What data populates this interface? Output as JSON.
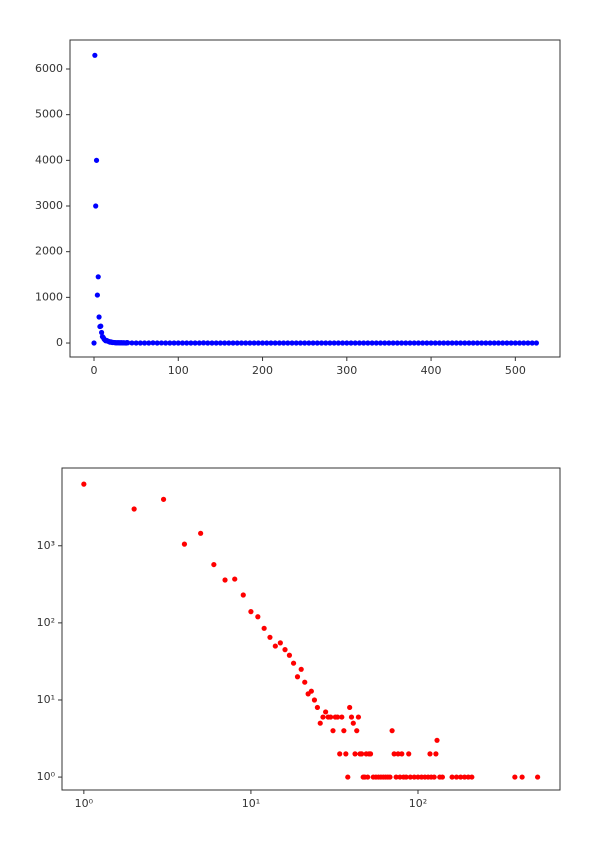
{
  "chart_data": [
    {
      "type": "scatter",
      "color": "#0000ff",
      "x": [
        0,
        1,
        2,
        3,
        4,
        5,
        6,
        7,
        8,
        9,
        10,
        11,
        12,
        13,
        14,
        15,
        16,
        17,
        18,
        19,
        20,
        21,
        22,
        23,
        24,
        25,
        26,
        27,
        28,
        29,
        30,
        31,
        32,
        33,
        34,
        35,
        36,
        37,
        38,
        39,
        40,
        45,
        50,
        55,
        60,
        65,
        70,
        75,
        80,
        85,
        90,
        95,
        100,
        105,
        110,
        115,
        120,
        125,
        130,
        135,
        140,
        145,
        150,
        155,
        160,
        165,
        170,
        175,
        180,
        185,
        190,
        195,
        200,
        205,
        210,
        215,
        220,
        225,
        230,
        235,
        240,
        245,
        250,
        255,
        260,
        265,
        270,
        275,
        280,
        285,
        290,
        295,
        300,
        305,
        310,
        315,
        320,
        325,
        330,
        335,
        340,
        345,
        350,
        355,
        360,
        365,
        370,
        375,
        380,
        385,
        390,
        395,
        400,
        405,
        410,
        415,
        420,
        425,
        430,
        435,
        440,
        445,
        450,
        455,
        460,
        465,
        470,
        475,
        480,
        485,
        490,
        495,
        500,
        505,
        510,
        515,
        520,
        525
      ],
      "values": [
        0,
        6300,
        3000,
        4000,
        1050,
        1450,
        570,
        360,
        370,
        230,
        140,
        120,
        85,
        65,
        50,
        55,
        45,
        38,
        30,
        20,
        25,
        17,
        12,
        13,
        10,
        8,
        5,
        6,
        7,
        6,
        6,
        4,
        6,
        6,
        2,
        6,
        4,
        2,
        1,
        8,
        6,
        2,
        1,
        0,
        1,
        0,
        4,
        0,
        2,
        1,
        1,
        1,
        1,
        1,
        1,
        1,
        1,
        1,
        3,
        1,
        1,
        0,
        0,
        0,
        1,
        0,
        1,
        0,
        1,
        0,
        1,
        0,
        1,
        0,
        1,
        0,
        0,
        0,
        0,
        0,
        0,
        0,
        0,
        0,
        0,
        0,
        0,
        0,
        0,
        0,
        0,
        0,
        0,
        0,
        0,
        0,
        0,
        0,
        0,
        0,
        0,
        0,
        0,
        0,
        0,
        0,
        0,
        0,
        1,
        0,
        0,
        0,
        0,
        0,
        0,
        0,
        1,
        0,
        0,
        0,
        0,
        0,
        0,
        0,
        0,
        0,
        0,
        0,
        0,
        0,
        0,
        0,
        0,
        0,
        0,
        0,
        1,
        0
      ],
      "xlim": [
        -28.5,
        553
      ],
      "ylim": [
        -306,
        6635
      ],
      "xticks": [
        0,
        100,
        200,
        300,
        400,
        500
      ],
      "yticks": [
        0,
        1000,
        2000,
        3000,
        4000,
        5000,
        6000
      ]
    },
    {
      "type": "scatter",
      "color": "#ff0000",
      "log_x": true,
      "log_y": true,
      "x": [
        1,
        2,
        3,
        4,
        5,
        6,
        7,
        8,
        9,
        10,
        11,
        12,
        13,
        14,
        15,
        16,
        17,
        18,
        19,
        20,
        21,
        22,
        23,
        24,
        25,
        26,
        27,
        28,
        29,
        30,
        31,
        32,
        33,
        34,
        35,
        36,
        37,
        38,
        39,
        40,
        41,
        42,
        43,
        44,
        45,
        46,
        47,
        48,
        49,
        50,
        51,
        52,
        54,
        56,
        58,
        60,
        62,
        64,
        66,
        68,
        70,
        72,
        74,
        76,
        78,
        80,
        82,
        85,
        88,
        90,
        95,
        100,
        105,
        110,
        115,
        118,
        120,
        125,
        128,
        130,
        135,
        140,
        160,
        170,
        180,
        190,
        200,
        210,
        380,
        420,
        520
      ],
      "values": [
        6300,
        3000,
        4000,
        1050,
        1450,
        570,
        360,
        370,
        230,
        140,
        120,
        85,
        65,
        50,
        55,
        45,
        38,
        30,
        20,
        25,
        17,
        12,
        13,
        10,
        8,
        5,
        6,
        7,
        6,
        6,
        4,
        6,
        6,
        2,
        6,
        4,
        2,
        1,
        8,
        6,
        5,
        2,
        4,
        6,
        2,
        2,
        1,
        1,
        2,
        1,
        2,
        2,
        1,
        1,
        1,
        1,
        1,
        1,
        1,
        1,
        4,
        2,
        1,
        2,
        1,
        2,
        1,
        1,
        2,
        1,
        1,
        1,
        1,
        1,
        1,
        2,
        1,
        1,
        2,
        3,
        1,
        1,
        1,
        1,
        1,
        1,
        1,
        1,
        1,
        1,
        1
      ],
      "xlim": [
        0.74,
        708
      ],
      "ylim": [
        0.68,
        10200
      ],
      "xticks": [
        {
          "value": 1,
          "label": "10⁰"
        },
        {
          "value": 10,
          "label": "10¹"
        },
        {
          "value": 100,
          "label": "10²"
        }
      ],
      "yticks": [
        {
          "value": 1,
          "label": "10⁰"
        },
        {
          "value": 10,
          "label": "10¹"
        },
        {
          "value": 100,
          "label": "10²"
        },
        {
          "value": 1000,
          "label": "10³"
        }
      ]
    }
  ]
}
